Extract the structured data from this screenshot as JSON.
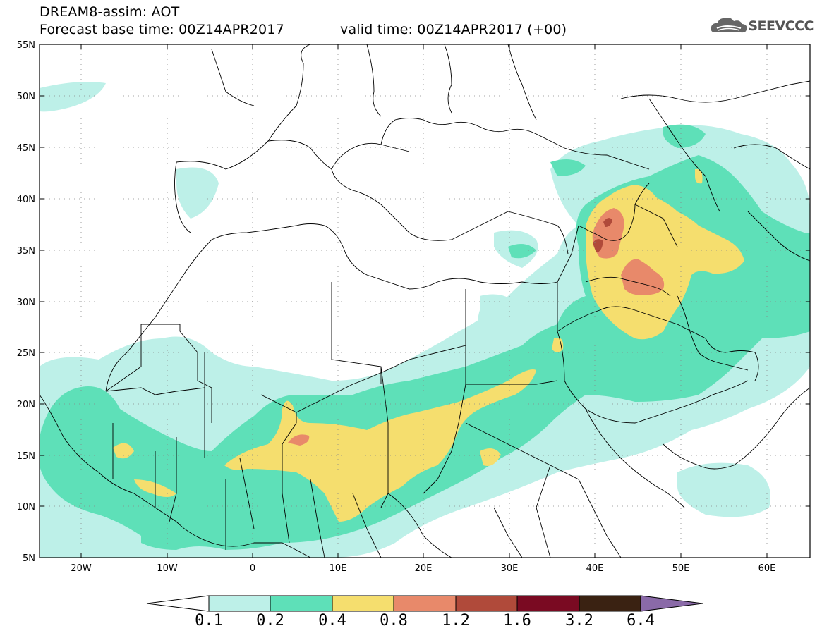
{
  "header": {
    "title_line1": "DREAM8-assim: AOT",
    "title_line2_left": "Forecast base time: 00Z14APR2017",
    "title_line2_right": "valid time: 00Z14APR2017 (+00)",
    "logo_text": "SEEVCCC",
    "logo_icon": "cloud-icon"
  },
  "map": {
    "lat_labels": [
      "55N",
      "50N",
      "45N",
      "40N",
      "35N",
      "30N",
      "25N",
      "20N",
      "15N",
      "10N",
      "5N"
    ],
    "lon_labels": [
      "20W",
      "10W",
      "0",
      "10E",
      "20E",
      "30E",
      "40E",
      "50E",
      "60E"
    ],
    "field": "Aerosol optical thickness"
  },
  "colorbar": {
    "labels": [
      "0.1",
      "0.2",
      "0.4",
      "0.8",
      "1.2",
      "1.6",
      "3.2",
      "6.4"
    ],
    "colors": [
      "#bdf0e8",
      "#5ee0b8",
      "#f5de6e",
      "#e8896a",
      "#b04a3a",
      "#7a0a22",
      "#3a2212",
      "#8a6aa8"
    ]
  },
  "colors": {
    "c01": "#bdf0e8",
    "c02": "#5ee0b8",
    "c04": "#f5de6e",
    "c08": "#e8896a",
    "c12": "#b04a3a"
  }
}
